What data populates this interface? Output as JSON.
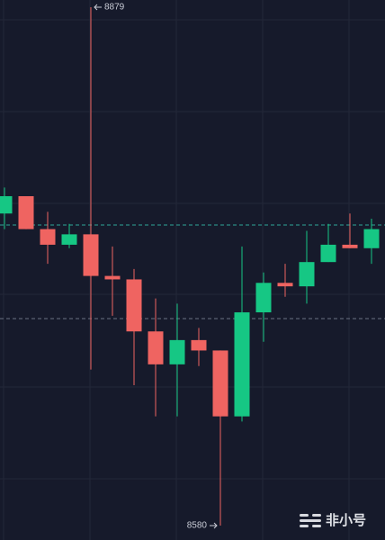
{
  "chart_data": {
    "type": "candlestick",
    "open": [
      8760,
      8770,
      8751,
      8742,
      8748,
      8724,
      8722,
      8692,
      8673,
      8687,
      8681,
      8643,
      8703,
      8720,
      8718,
      8732,
      8742,
      8740
    ],
    "high": [
      8775,
      8770,
      8761,
      8754,
      8879,
      8741,
      8728,
      8711,
      8708,
      8694,
      8681,
      8741,
      8726,
      8731,
      8750,
      8754,
      8760,
      8757
    ],
    "low": [
      8751,
      8751,
      8731,
      8740,
      8670,
      8701,
      8661,
      8643,
      8643,
      8672,
      8580,
      8640,
      8686,
      8712,
      8708,
      8732,
      8740,
      8731
    ],
    "close": [
      8770,
      8751,
      8742,
      8748,
      8724,
      8722,
      8692,
      8673,
      8687,
      8681,
      8643,
      8703,
      8720,
      8718,
      8732,
      8742,
      8740,
      8751
    ],
    "up_color": "#16c784",
    "down_color": "#ef6461",
    "grid": true,
    "watermark": "非小号"
  }
}
